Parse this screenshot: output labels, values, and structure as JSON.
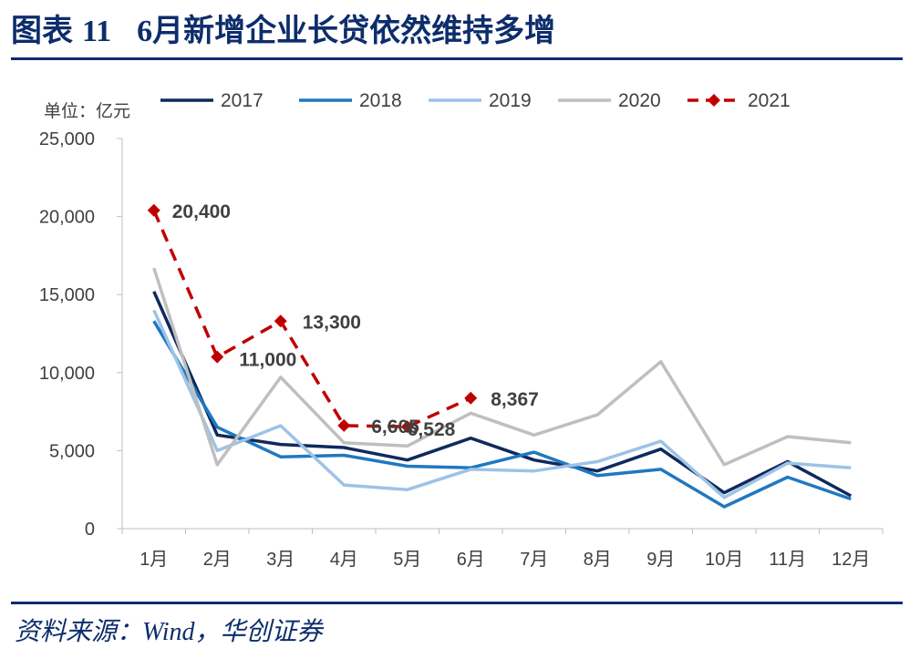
{
  "header": {
    "label": "图表",
    "number": "11",
    "title": "6月新增企业长贷依然维持多增"
  },
  "footer": {
    "source": "资料来源：Wind，华创证券"
  },
  "colors": {
    "brand": "#0d2d6b"
  },
  "chart_data": {
    "type": "line",
    "title": "6月新增企业长贷依然维持多增",
    "unit_label": "单位：亿元",
    "xlabel": "",
    "ylabel": "",
    "ylim": [
      0,
      25000
    ],
    "yticks": [
      0,
      5000,
      10000,
      15000,
      20000,
      25000
    ],
    "ytick_labels": [
      "0",
      "5,000",
      "10,000",
      "15,000",
      "20,000",
      "25,000"
    ],
    "categories": [
      "1月",
      "2月",
      "3月",
      "4月",
      "5月",
      "6月",
      "7月",
      "8月",
      "9月",
      "10月",
      "11月",
      "12月"
    ],
    "legend_position": "top",
    "series": [
      {
        "name": "2017",
        "color": "#0f2a5c",
        "dashed": false,
        "values": [
          15200,
          6000,
          5400,
          5200,
          4400,
          5800,
          4400,
          3700,
          5100,
          2300,
          4300,
          2100
        ]
      },
      {
        "name": "2018",
        "color": "#1f78c1",
        "dashed": false,
        "values": [
          13300,
          6500,
          4600,
          4700,
          4000,
          3900,
          4900,
          3400,
          3800,
          1400,
          3300,
          1900
        ]
      },
      {
        "name": "2019",
        "color": "#9dc3e6",
        "dashed": false,
        "values": [
          14000,
          5000,
          6600,
          2800,
          2500,
          3800,
          3700,
          4300,
          5600,
          2000,
          4200,
          3900
        ]
      },
      {
        "name": "2020",
        "color": "#bfbfbf",
        "dashed": false,
        "values": [
          16700,
          4100,
          9700,
          5500,
          5300,
          7400,
          6000,
          7300,
          10700,
          4100,
          5900,
          5500
        ]
      },
      {
        "name": "2021",
        "color": "#c00000",
        "dashed": true,
        "marker": "diamond",
        "values": [
          20400,
          11000,
          13300,
          6605,
          6528,
          8367,
          null,
          null,
          null,
          null,
          null,
          null
        ]
      }
    ],
    "annotations": [
      "20,400",
      "11,000",
      "13,300",
      "6,605",
      "6,528",
      "8,367"
    ]
  }
}
